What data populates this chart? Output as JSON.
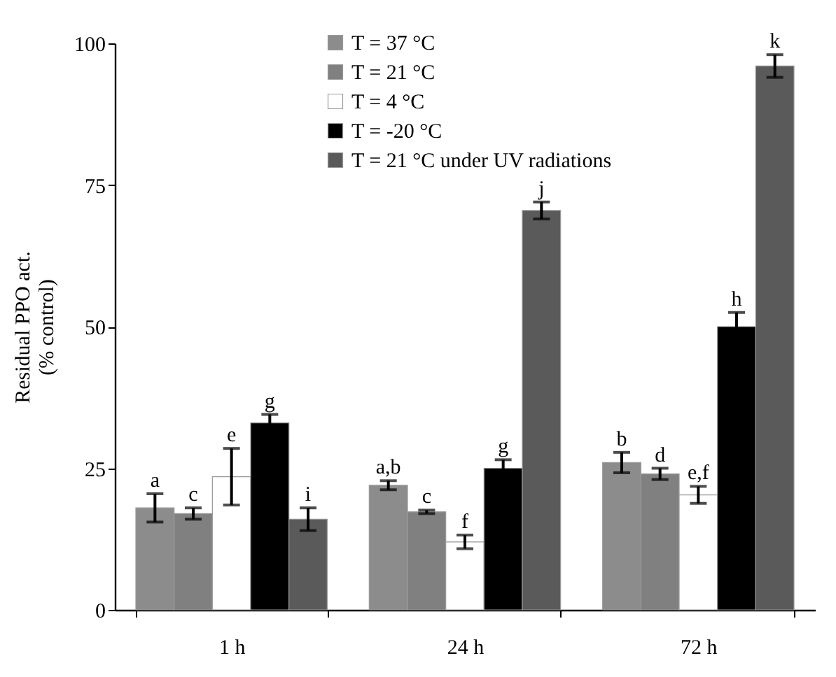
{
  "chart_data": {
    "type": "bar",
    "ylabel": "Residual PPO act.\n(% control)",
    "categories": [
      "1 h",
      "24 h",
      "72 h"
    ],
    "ylim": [
      0,
      100
    ],
    "yticks": [
      0,
      25,
      50,
      75,
      100
    ],
    "grid": false,
    "legend": "top",
    "series": [
      {
        "name": "T = 37 °C",
        "color": "#8c8c8c",
        "values": [
          18,
          22,
          26
        ],
        "errors": [
          2.5,
          0.8,
          1.8
        ],
        "value_labels": [
          "a",
          "a,b",
          "b"
        ]
      },
      {
        "name": "T = 21 °C",
        "color": "#808080",
        "values": [
          17,
          17.3,
          24
        ],
        "errors": [
          1,
          0.3,
          1
        ],
        "value_labels": [
          "c",
          "c",
          "d"
        ]
      },
      {
        "name": "T = 4 °C",
        "color": "#ffffff",
        "values": [
          23.5,
          12,
          20.3
        ],
        "errors": [
          5,
          1.2,
          1.5
        ],
        "value_labels": [
          "e",
          "f",
          "e,f"
        ]
      },
      {
        "name": "T = -20 °C",
        "color": "#000000",
        "values": [
          33,
          25,
          50
        ],
        "errors": [
          1.5,
          1.5,
          2.5
        ],
        "value_labels": [
          "g",
          "g",
          "h"
        ]
      },
      {
        "name": "T = 21 °C under UV radiations",
        "color": "#5a5a5a",
        "values": [
          16,
          70.5,
          96
        ],
        "errors": [
          2,
          1.5,
          2
        ],
        "value_labels": [
          "i",
          "j",
          "k"
        ]
      }
    ]
  }
}
